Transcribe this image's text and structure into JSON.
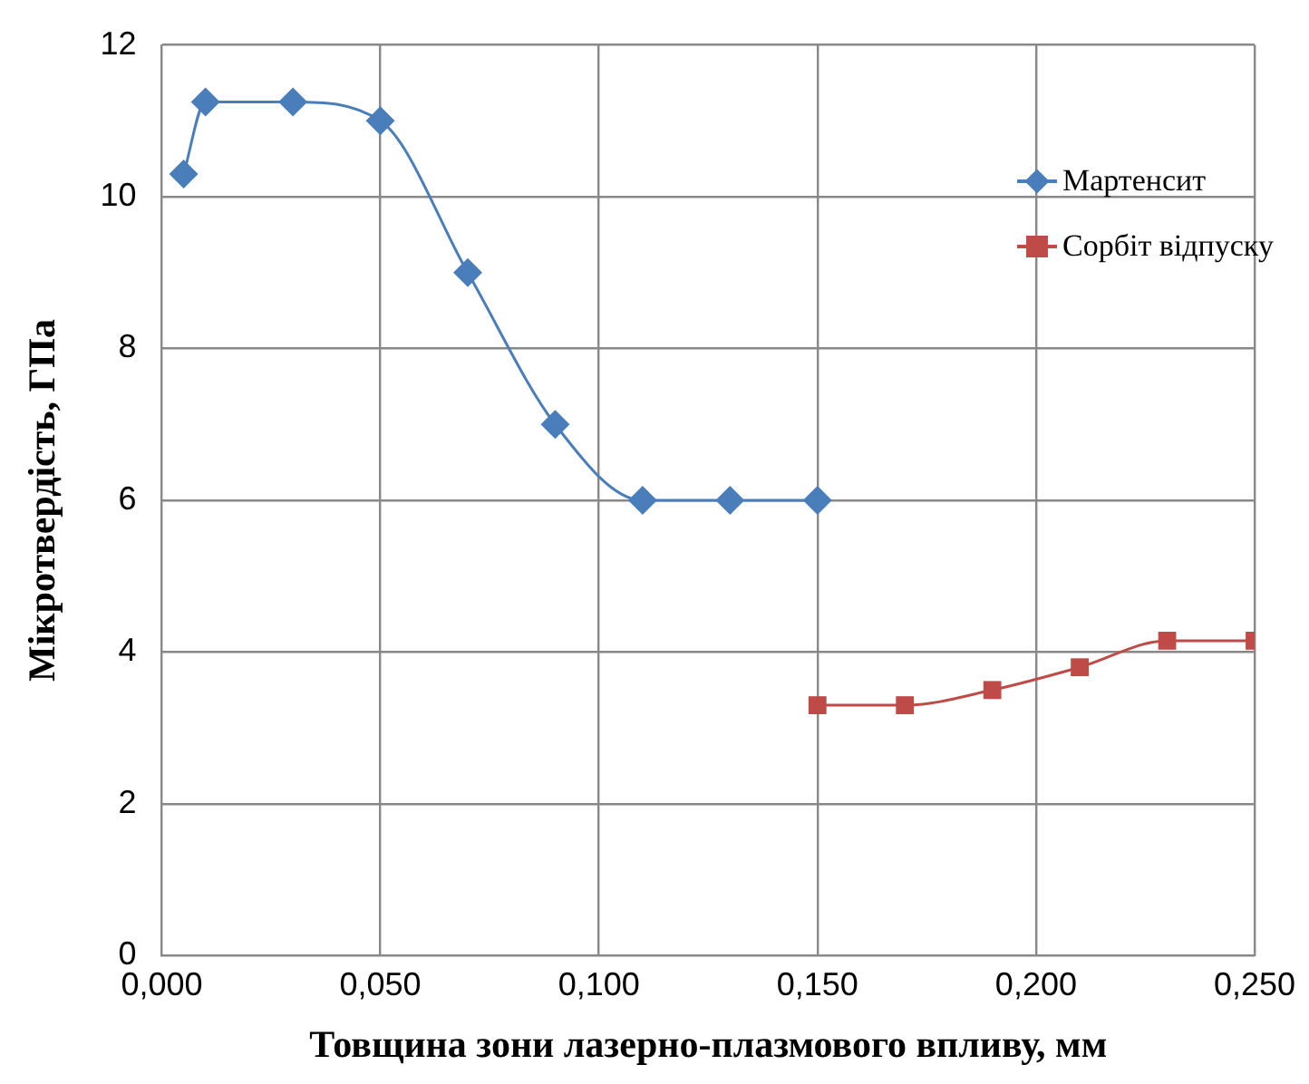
{
  "chart_data": {
    "type": "line",
    "xlabel": "Товщина зони лазерно-плазмового впливу, мм",
    "ylabel": "Мікротвердість, ГПа",
    "xlim": [
      0,
      0.25
    ],
    "xticks": [
      {
        "value": 0,
        "label": "0,000"
      },
      {
        "value": 0.05,
        "label": "0,050"
      },
      {
        "value": 0.1,
        "label": "0,100"
      },
      {
        "value": 0.15,
        "label": "0,150"
      },
      {
        "value": 0.2,
        "label": "0,200"
      },
      {
        "value": 0.25,
        "label": "0,250"
      }
    ],
    "ylim": [
      0,
      12
    ],
    "yticks": [
      0,
      2,
      4,
      6,
      8,
      10,
      12
    ],
    "grid": true,
    "legend": "top right",
    "series": [
      {
        "name": "Мартенсит",
        "color": "#4a7ebb",
        "marker": "diamond",
        "x": [
          0.005,
          0.01,
          0.03,
          0.05,
          0.07,
          0.09,
          0.11,
          0.13,
          0.15
        ],
        "values": [
          10.3,
          11.25,
          11.25,
          11,
          9,
          7,
          6,
          6,
          6
        ]
      },
      {
        "name": "Сорбіт відпуску",
        "color": "#be4b48",
        "marker": "square",
        "x": [
          0.15,
          0.17,
          0.19,
          0.21,
          0.23,
          0.25
        ],
        "values": [
          3.3,
          3.3,
          3.5,
          3.8,
          4.15,
          4.15
        ]
      }
    ]
  }
}
